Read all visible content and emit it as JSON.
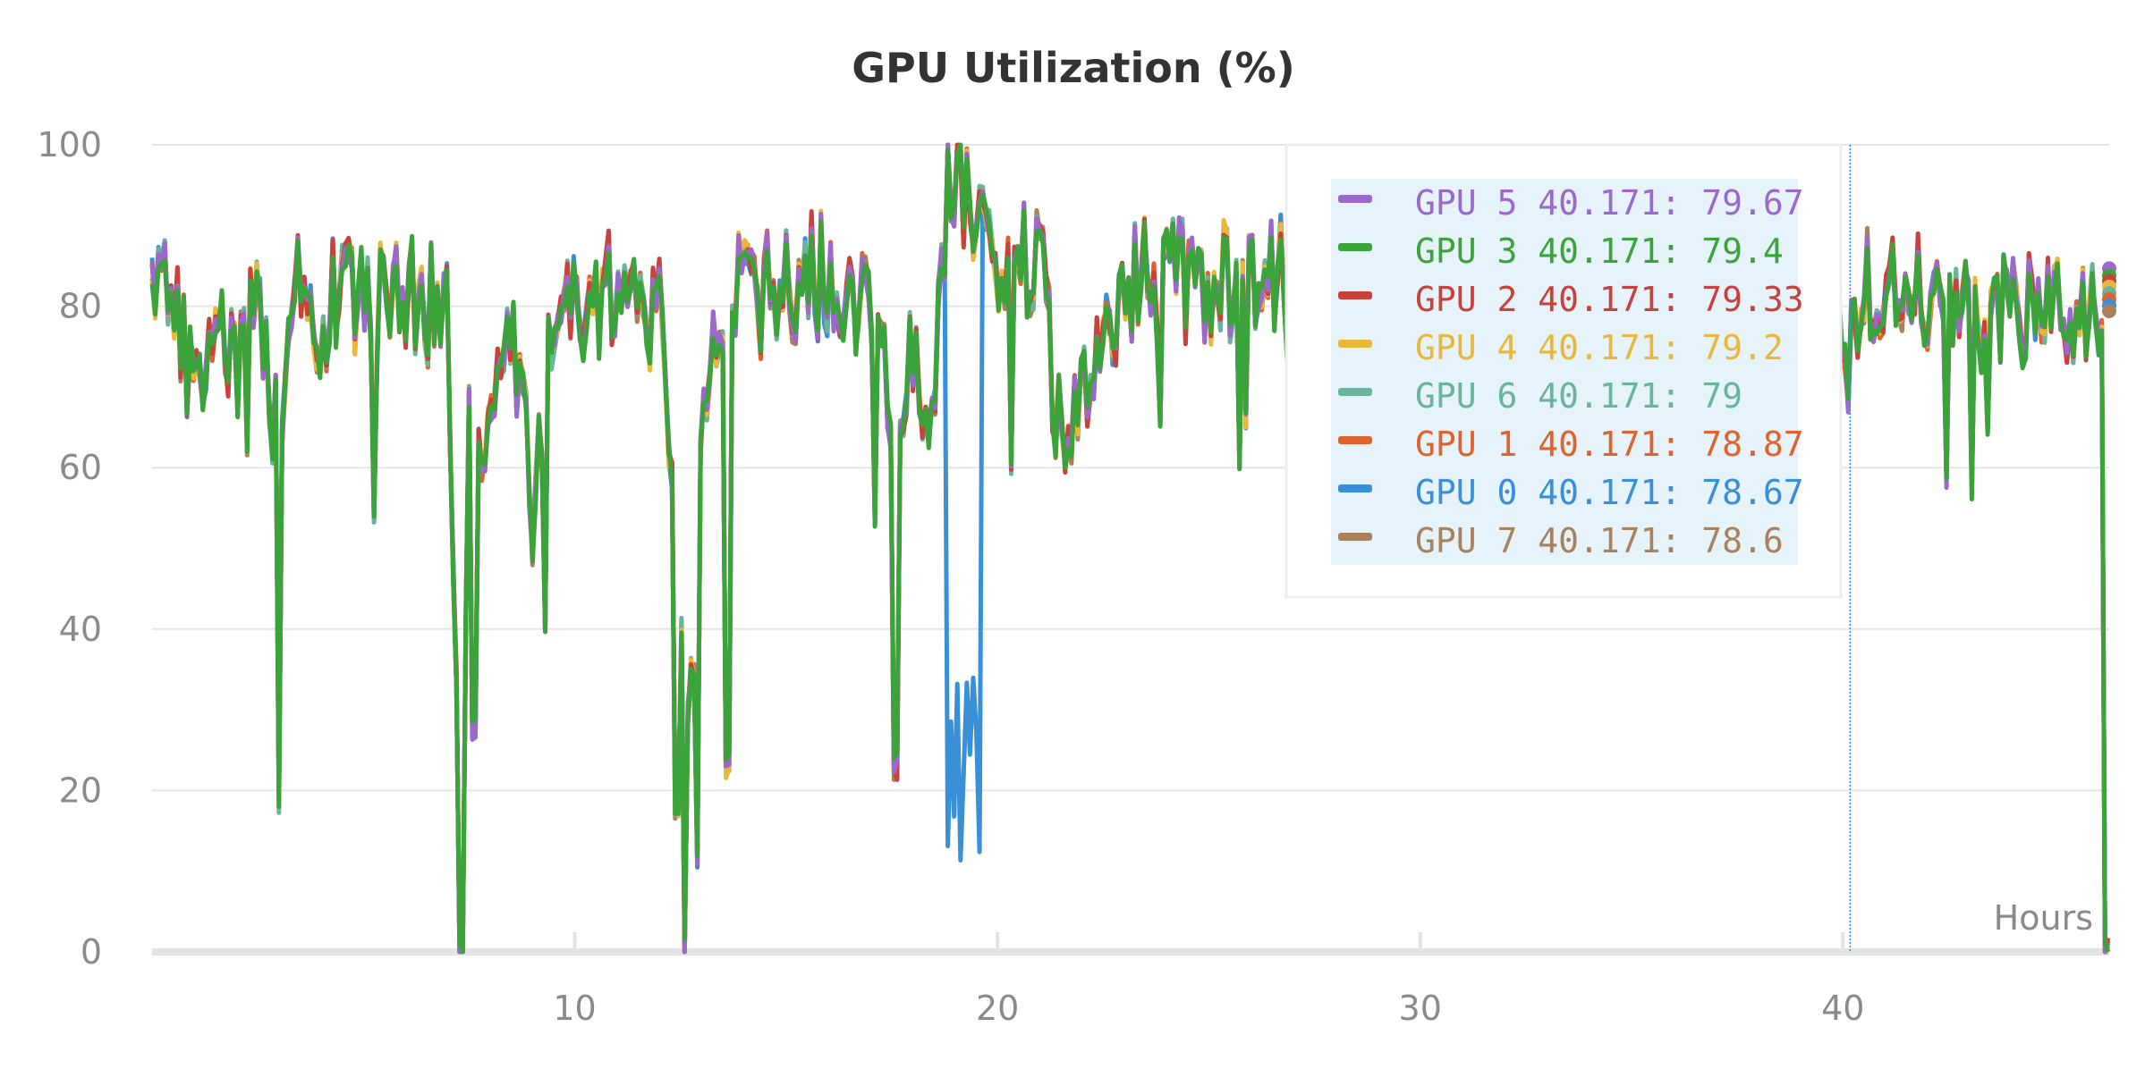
{
  "chart_data": {
    "type": "line",
    "title": "GPU Utilization (%)",
    "xlabel": "Hours",
    "ylabel": "",
    "xlim": [
      0,
      46.3
    ],
    "ylim": [
      0,
      100
    ],
    "x_ticks": [
      10,
      20,
      30,
      40
    ],
    "y_ticks": [
      0,
      20,
      40,
      60,
      80,
      100
    ],
    "grid": true,
    "hover_x": 40.171,
    "legend_position": "top-right",
    "series": [
      {
        "name": "GPU 5",
        "color": "#9b69cc",
        "hover_value": 79.67
      },
      {
        "name": "GPU 3",
        "color": "#3aa33a",
        "hover_value": 79.4
      },
      {
        "name": "GPU 2",
        "color": "#c9413a",
        "hover_value": 79.33
      },
      {
        "name": "GPU 4",
        "color": "#e9b83a",
        "hover_value": 79.2
      },
      {
        "name": "GPU 6",
        "color": "#6ab49c",
        "hover_value": 79
      },
      {
        "name": "GPU 1",
        "color": "#e0632f",
        "hover_value": 78.87
      },
      {
        "name": "GPU 0",
        "color": "#3a8fd9",
        "hover_value": 78.67
      },
      {
        "name": "GPU 7",
        "color": "#a9815c",
        "hover_value": 78.6
      }
    ],
    "profile": {
      "x": [
        0,
        0.5,
        1,
        1.5,
        2,
        2.5,
        3,
        3.5,
        4,
        4.5,
        5,
        6,
        7,
        7.3,
        7.5,
        8,
        8.5,
        9,
        9.5,
        10,
        11,
        12,
        12.5,
        12.8,
        13,
        13.5,
        14,
        15,
        16,
        17,
        17.5,
        18,
        18.5,
        18.8,
        19,
        19.5,
        20,
        21,
        21.5,
        22,
        22.5,
        23,
        24,
        25,
        26,
        27,
        40,
        41,
        42,
        43,
        44,
        45,
        46,
        46.2,
        46.3
      ],
      "y": [
        82,
        80,
        68,
        83,
        70,
        85,
        60,
        84,
        78,
        82,
        80,
        82,
        78,
        5,
        70,
        60,
        80,
        55,
        78,
        80,
        82,
        78,
        40,
        30,
        65,
        82,
        80,
        82,
        84,
        80,
        70,
        72,
        68,
        95,
        97,
        93,
        88,
        85,
        62,
        70,
        78,
        82,
        83,
        82,
        84,
        83,
        80,
        82,
        81,
        80,
        79,
        80,
        80,
        78,
        0
      ]
    },
    "dips": [
      {
        "x": 3.0,
        "min": 18
      },
      {
        "x": 7.3,
        "min": 0
      },
      {
        "x": 7.6,
        "min": 28
      },
      {
        "x": 9.3,
        "min": 41
      },
      {
        "x": 12.4,
        "min": 18
      },
      {
        "x": 12.6,
        "min": 0
      },
      {
        "x": 12.9,
        "min": 12
      },
      {
        "x": 13.6,
        "min": 23
      },
      {
        "x": 17.6,
        "min": 23
      },
      {
        "x": 46.25,
        "min": 0
      }
    ],
    "gpu0_dip": {
      "x_start": 18.8,
      "x_end": 19.6,
      "min": 11
    }
  }
}
